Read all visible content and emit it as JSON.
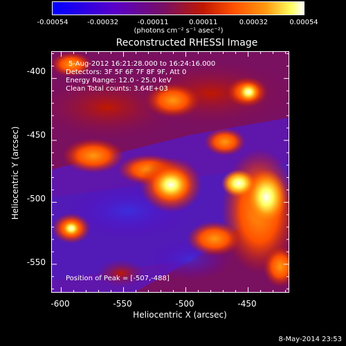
{
  "colorbar": {
    "labels": [
      "-0.00054",
      "-0.00032",
      "-0.00011",
      "0.00011",
      "0.00032",
      "0.00054"
    ],
    "unit": "(photons cm⁻² s⁻¹ asec⁻²)",
    "colors": [
      "#0000ff",
      "#5a00c8",
      "#7a1060",
      "#c01800",
      "#ff5000",
      "#ff9a10",
      "#ffff60",
      "#ffffff"
    ]
  },
  "title": "Reconstructed RHESSI Image",
  "annotations": {
    "time": "5-Aug-2012 16:21:28.000 to 16:24:16.000",
    "detectors": "Detectors: 3F 5F 6F 7F 8F 9F, Att 0",
    "energy": "Energy Range: 12.0 - 25.0 keV",
    "clean": "Clean     Total counts: 3.64E+03",
    "peak": "Position of Peak = [-507,-488]"
  },
  "axes": {
    "xlabel": "Heliocentric X (arcsec)",
    "ylabel": "Heliocentric Y (arcsec)",
    "xticks": [
      "-600",
      "-550",
      "-500",
      "-450"
    ],
    "yticks": [
      "-400",
      "-450",
      "-500",
      "-550"
    ]
  },
  "footer": {
    "date": "8-May-2014 23:53"
  }
}
